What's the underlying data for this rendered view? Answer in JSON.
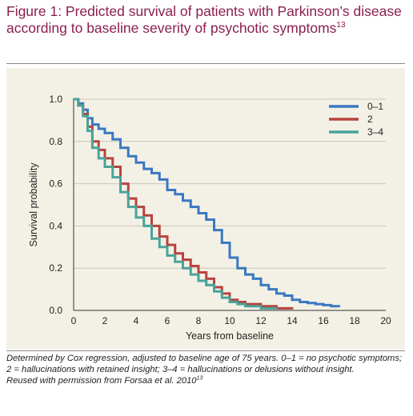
{
  "figure": {
    "title": "Figure 1: Predicted survival of patients with Parkinson’s disease according to baseline severity of psychotic symptoms",
    "title_ref": "13",
    "footnote_main": "Determined by Cox regression, adjusted to baseline age of 75 years. 0–1 = no psychotic symptoms; 2 = hallucinations with retained insight; 3–4 = hallucinations or delusions without insight.",
    "footnote_source": "Reused with permission from Forsaa et al. 2010",
    "footnote_ref": "13",
    "title_color": "#8a1f4f",
    "panel_color": "#f3f1e6"
  },
  "chart_data": {
    "type": "line",
    "title": "",
    "xlabel": "Years from baseline",
    "ylabel": "Survival probability",
    "xlim": [
      0,
      20
    ],
    "ylim": [
      0,
      1.0
    ],
    "x_ticks": [
      "0",
      "2",
      "4",
      "6",
      "8",
      "10",
      "12",
      "14",
      "16",
      "18",
      "20"
    ],
    "y_ticks": [
      "0.0",
      "0.2",
      "0.4",
      "0.6",
      "0.8",
      "1.0"
    ],
    "grid": "horizontal",
    "legend_position": "top-right",
    "step": true,
    "series": [
      {
        "name": "0–1",
        "color": "#3a78c2",
        "x": [
          0,
          0.3,
          0.6,
          0.9,
          1.2,
          1.6,
          2.0,
          2.5,
          3.0,
          3.5,
          4.0,
          4.5,
          5.0,
          5.5,
          6.0,
          6.5,
          7.0,
          7.5,
          8.0,
          8.5,
          9.0,
          9.5,
          10.0,
          10.5,
          11.0,
          11.5,
          12.0,
          12.5,
          13.0,
          13.5,
          14.0,
          14.5,
          15.0,
          15.5,
          16.0,
          16.5,
          17.0
        ],
        "y": [
          1.0,
          0.98,
          0.95,
          0.91,
          0.88,
          0.86,
          0.84,
          0.81,
          0.77,
          0.73,
          0.7,
          0.67,
          0.65,
          0.62,
          0.57,
          0.55,
          0.52,
          0.49,
          0.46,
          0.43,
          0.38,
          0.32,
          0.25,
          0.2,
          0.17,
          0.15,
          0.12,
          0.1,
          0.08,
          0.07,
          0.05,
          0.04,
          0.035,
          0.03,
          0.025,
          0.02,
          0.015
        ]
      },
      {
        "name": "2",
        "color": "#b8433f",
        "x": [
          0,
          0.3,
          0.6,
          0.9,
          1.2,
          1.6,
          2.0,
          2.5,
          3.0,
          3.5,
          4.0,
          4.5,
          5.0,
          5.5,
          6.0,
          6.5,
          7.0,
          7.5,
          8.0,
          8.5,
          9.0,
          9.5,
          10.0,
          10.5,
          11.0,
          12.0,
          13.0,
          14.0
        ],
        "y": [
          1.0,
          0.97,
          0.93,
          0.87,
          0.8,
          0.76,
          0.72,
          0.68,
          0.6,
          0.53,
          0.49,
          0.45,
          0.4,
          0.35,
          0.31,
          0.27,
          0.24,
          0.21,
          0.18,
          0.15,
          0.11,
          0.08,
          0.05,
          0.04,
          0.03,
          0.02,
          0.01,
          0.005
        ]
      },
      {
        "name": "3–4",
        "color": "#4aa39a",
        "x": [
          0,
          0.3,
          0.6,
          0.9,
          1.2,
          1.6,
          2.0,
          2.5,
          3.0,
          3.5,
          4.0,
          4.5,
          5.0,
          5.5,
          6.0,
          6.5,
          7.0,
          7.5,
          8.0,
          8.5,
          9.0,
          9.5,
          10.0,
          10.5,
          11.0,
          12.0,
          13.0
        ],
        "y": [
          1.0,
          0.97,
          0.92,
          0.85,
          0.77,
          0.72,
          0.68,
          0.63,
          0.56,
          0.49,
          0.44,
          0.4,
          0.34,
          0.3,
          0.26,
          0.23,
          0.2,
          0.17,
          0.14,
          0.12,
          0.09,
          0.06,
          0.04,
          0.03,
          0.02,
          0.01,
          0.005
        ]
      }
    ]
  }
}
